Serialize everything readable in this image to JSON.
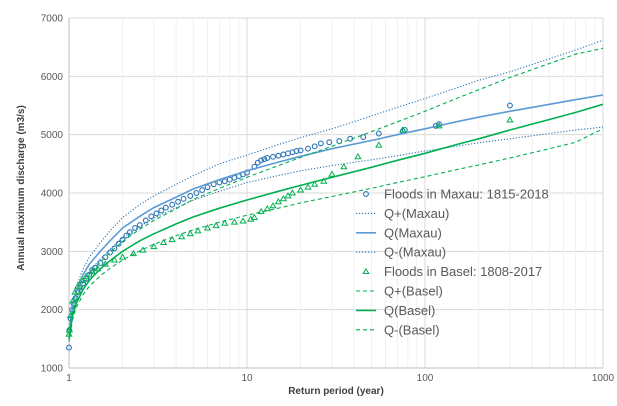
{
  "chart_data": {
    "type": "scatter",
    "xlabel": "Return period (year)",
    "ylabel": "Annual maximum discharge (m3/s)",
    "x_scale": "log",
    "xlim": [
      1,
      1000
    ],
    "ylim": [
      1000,
      7000
    ],
    "x_ticks": [
      1,
      10,
      100,
      1000
    ],
    "y_ticks": [
      1000,
      2000,
      3000,
      4000,
      5000,
      6000,
      7000
    ],
    "grid": true,
    "legend_position": "right",
    "series": [
      {
        "name": "Floods in Maxau: 1815-2018",
        "kind": "markers",
        "marker": "circle",
        "color": "#2e75b6",
        "x": [
          1.0,
          1.005,
          1.02,
          1.04,
          1.06,
          1.09,
          1.12,
          1.15,
          1.2,
          1.25,
          1.3,
          1.35,
          1.4,
          1.5,
          1.6,
          1.7,
          1.8,
          1.9,
          2.0,
          2.1,
          2.2,
          2.35,
          2.5,
          2.7,
          2.9,
          3.1,
          3.3,
          3.5,
          3.8,
          4.1,
          4.4,
          4.8,
          5.2,
          5.6,
          6.0,
          6.5,
          7.0,
          7.5,
          8.0,
          8.5,
          9.0,
          9.5,
          10.0,
          11.0,
          11.5,
          12.0,
          12.5,
          13.0,
          14.0,
          15.0,
          16.0,
          17.0,
          18.0,
          19.0,
          20.0,
          22.0,
          24.0,
          26.0,
          29.0,
          33.0,
          38.0,
          45.0,
          55.0,
          75.0,
          77.0,
          115.0,
          120.0,
          300.0
        ],
        "y": [
          1350,
          1650,
          1850,
          2000,
          2100,
          2200,
          2300,
          2380,
          2450,
          2530,
          2600,
          2680,
          2720,
          2800,
          2900,
          2980,
          3050,
          3130,
          3200,
          3270,
          3330,
          3400,
          3450,
          3530,
          3600,
          3650,
          3700,
          3750,
          3800,
          3850,
          3900,
          3950,
          4000,
          4050,
          4100,
          4150,
          4180,
          4200,
          4230,
          4260,
          4290,
          4320,
          4350,
          4450,
          4520,
          4560,
          4580,
          4600,
          4620,
          4640,
          4660,
          4680,
          4700,
          4720,
          4730,
          4760,
          4800,
          4850,
          4870,
          4890,
          4930,
          4960,
          5020,
          5060,
          5080,
          5150,
          5180,
          5500
        ]
      },
      {
        "name": "Q+(Maxau)",
        "kind": "line",
        "dash": "dotted",
        "color": "#2e75b6",
        "x": [
          1.0,
          1.05,
          1.1,
          1.2,
          1.3,
          1.5,
          1.7,
          2.0,
          2.5,
          3.0,
          4.0,
          5.0,
          7.0,
          10.0,
          15.0,
          20.0,
          30.0,
          50.0,
          70.0,
          100.0,
          150.0,
          200.0,
          300.0,
          500.0,
          700.0,
          1000.0
        ],
        "y": [
          1650,
          2150,
          2400,
          2700,
          2900,
          3150,
          3350,
          3580,
          3800,
          3950,
          4150,
          4300,
          4500,
          4650,
          4830,
          4950,
          5100,
          5320,
          5470,
          5620,
          5800,
          5930,
          6080,
          6300,
          6450,
          6620
        ]
      },
      {
        "name": "Q(Maxau)",
        "kind": "line",
        "dash": "solid",
        "color": "#5b9bd5",
        "x": [
          1.0,
          1.05,
          1.1,
          1.2,
          1.3,
          1.5,
          1.7,
          2.0,
          2.5,
          3.0,
          4.0,
          5.0,
          7.0,
          10.0,
          15.0,
          20.0,
          30.0,
          50.0,
          70.0,
          100.0,
          150.0,
          200.0,
          300.0,
          500.0,
          700.0,
          1000.0
        ],
        "y": [
          1600,
          2100,
          2320,
          2600,
          2780,
          3000,
          3180,
          3400,
          3600,
          3750,
          3930,
          4070,
          4230,
          4380,
          4530,
          4630,
          4760,
          4900,
          5000,
          5100,
          5220,
          5300,
          5400,
          5520,
          5600,
          5680
        ]
      },
      {
        "name": "Q-(Maxau)",
        "kind": "line",
        "dash": "dotted",
        "color": "#2e75b6",
        "x": [
          1.0,
          1.05,
          1.1,
          1.2,
          1.3,
          1.5,
          1.7,
          2.0,
          2.5,
          3.0,
          4.0,
          5.0,
          7.0,
          10.0,
          15.0,
          20.0,
          30.0,
          50.0,
          70.0,
          100.0,
          150.0,
          200.0,
          300.0,
          500.0,
          700.0,
          1000.0
        ],
        "y": [
          1550,
          2000,
          2220,
          2480,
          2650,
          2870,
          3030,
          3230,
          3430,
          3570,
          3750,
          3880,
          4030,
          4180,
          4300,
          4380,
          4470,
          4570,
          4640,
          4720,
          4800,
          4860,
          4930,
          5020,
          5080,
          5130
        ]
      },
      {
        "name": "Floods in Basel: 1808-2017",
        "kind": "markers",
        "marker": "triangle",
        "color": "#00b050",
        "x": [
          1.0,
          1.005,
          1.02,
          1.05,
          1.08,
          1.12,
          1.18,
          1.25,
          1.35,
          1.45,
          1.6,
          1.8,
          2.0,
          2.3,
          2.6,
          3.0,
          3.4,
          3.8,
          4.3,
          4.8,
          5.3,
          6.0,
          6.7,
          7.5,
          8.5,
          9.5,
          10.5,
          11.0,
          12.0,
          13.0,
          14.0,
          15.0,
          16.0,
          17.0,
          18.0,
          20.0,
          22.0,
          24.0,
          27.0,
          30.0,
          35.0,
          42.0,
          55.0,
          75.0,
          120.0,
          300.0
        ],
        "y": [
          1580,
          1650,
          1900,
          2150,
          2300,
          2400,
          2500,
          2570,
          2650,
          2700,
          2780,
          2850,
          2900,
          2960,
          3020,
          3080,
          3150,
          3200,
          3250,
          3300,
          3350,
          3400,
          3440,
          3480,
          3500,
          3520,
          3550,
          3580,
          3680,
          3730,
          3780,
          3850,
          3900,
          3950,
          4000,
          4050,
          4100,
          4150,
          4200,
          4320,
          4450,
          4620,
          4820,
          5080,
          5150,
          5250
        ]
      },
      {
        "name": "Q+(Basel)",
        "kind": "line",
        "dash": "dashed",
        "color": "#00b050",
        "x": [
          1.0,
          1.05,
          1.1,
          1.2,
          1.3,
          1.5,
          1.7,
          2.0,
          2.5,
          3.0,
          4.0,
          5.0,
          7.0,
          10.0,
          15.0,
          20.0,
          30.0,
          50.0,
          70.0,
          100.0,
          150.0,
          200.0,
          300.0,
          500.0,
          700.0,
          1000.0
        ],
        "y": [
          1550,
          1980,
          2180,
          2430,
          2600,
          2820,
          2980,
          3170,
          3380,
          3530,
          3730,
          3890,
          4080,
          4270,
          4470,
          4610,
          4800,
          5050,
          5220,
          5400,
          5620,
          5770,
          5980,
          6220,
          6380,
          6480
        ]
      },
      {
        "name": "Q(Basel)",
        "kind": "line",
        "dash": "solid",
        "color": "#00b050",
        "x": [
          1.0,
          1.05,
          1.1,
          1.2,
          1.3,
          1.5,
          1.7,
          2.0,
          2.5,
          3.0,
          4.0,
          5.0,
          7.0,
          10.0,
          15.0,
          20.0,
          30.0,
          50.0,
          70.0,
          100.0,
          150.0,
          200.0,
          300.0,
          500.0,
          700.0,
          1000.0
        ],
        "y": [
          1500,
          1920,
          2110,
          2350,
          2500,
          2700,
          2840,
          3000,
          3180,
          3300,
          3470,
          3590,
          3740,
          3880,
          4030,
          4130,
          4270,
          4440,
          4560,
          4680,
          4830,
          4930,
          5080,
          5260,
          5380,
          5520
        ]
      },
      {
        "name": "Q-(Basel)",
        "kind": "line",
        "dash": "dashed",
        "color": "#00b050",
        "x": [
          1.0,
          1.05,
          1.1,
          1.2,
          1.3,
          1.5,
          1.7,
          2.0,
          2.5,
          3.0,
          4.0,
          5.0,
          7.0,
          10.0,
          15.0,
          20.0,
          30.0,
          50.0,
          70.0,
          100.0,
          150.0,
          200.0,
          300.0,
          500.0,
          700.0,
          1000.0
        ],
        "y": [
          1450,
          1860,
          2040,
          2260,
          2400,
          2580,
          2710,
          2850,
          3010,
          3120,
          3270,
          3370,
          3500,
          3620,
          3740,
          3830,
          3940,
          4080,
          4180,
          4280,
          4400,
          4480,
          4600,
          4760,
          4870,
          5100
        ]
      }
    ]
  }
}
